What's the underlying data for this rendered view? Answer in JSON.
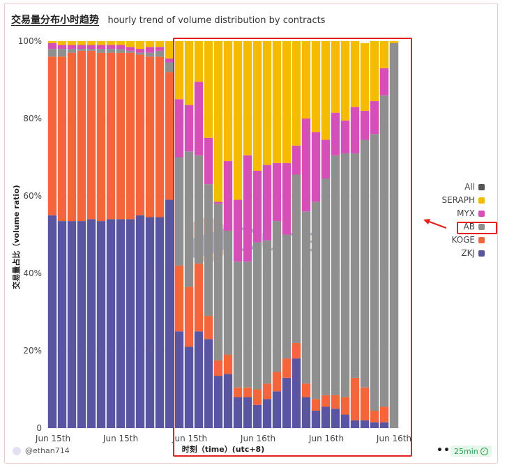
{
  "title": {
    "main": "交易量分布小时趋势",
    "subtitle": "hourly trend of volume distribution by contracts"
  },
  "footer": {
    "user": "@ethan714",
    "menu": "•••",
    "refresh_badge": "25min"
  },
  "watermark": "Dune",
  "colors": {
    "ZKJ": "#5a55a0",
    "KOGE": "#f4653b",
    "AB": "#8f8f8f",
    "MYX": "#d64fb8",
    "SERAPH": "#f5bb00",
    "All": "#555555"
  },
  "legend": [
    {
      "name": "All",
      "color": "#555555"
    },
    {
      "name": "SERAPH",
      "color": "#f5bb00"
    },
    {
      "name": "MYX",
      "color": "#d64fb8"
    },
    {
      "name": "AB",
      "color": "#8f8f8f",
      "highlighted": true
    },
    {
      "name": "KOGE",
      "color": "#f4653b"
    },
    {
      "name": "ZKJ",
      "color": "#5a55a0"
    }
  ],
  "chart_data": {
    "type": "bar",
    "stacked": true,
    "normalized": true,
    "xlabel": "时刻（time）(utc+8)",
    "ylabel": "交易量占比（volume ratio)",
    "ylim": [
      0,
      100
    ],
    "y_ticks": [
      "0",
      "20%",
      "40%",
      "60%",
      "80%",
      "100%"
    ],
    "x_tick_labels": [
      "Jun 15th",
      "Jun 15th",
      "Jun 15th",
      "Jun 16th",
      "Jun 16th",
      "Jun 16th"
    ],
    "stack_order": [
      "ZKJ",
      "KOGE",
      "AB",
      "MYX",
      "SERAPH"
    ],
    "series": [
      {
        "name": "ZKJ",
        "values": [
          55,
          53.5,
          53.5,
          53.5,
          54,
          53.5,
          54,
          54,
          54,
          55,
          54.5,
          54.5,
          59,
          25,
          21,
          25,
          23,
          13.5,
          14,
          8,
          8,
          6,
          7.5,
          9.5,
          13,
          18,
          8,
          4.5,
          5.5,
          5,
          3.5,
          2,
          2,
          1.5,
          1.5,
          0
        ]
      },
      {
        "name": "KOGE",
        "values": [
          41,
          42.5,
          43.5,
          44,
          43.5,
          43.5,
          43,
          43,
          43,
          41.5,
          41.5,
          41.5,
          33,
          17,
          15.5,
          17.5,
          6,
          4,
          5,
          2.5,
          2.5,
          4,
          4,
          5,
          5,
          4,
          3.5,
          3,
          3,
          3.5,
          4.5,
          11,
          8.5,
          3,
          4,
          0
        ]
      },
      {
        "name": "AB",
        "values": [
          2,
          2,
          1,
          0.5,
          0.5,
          1,
          1,
          1,
          0.5,
          0.5,
          1,
          1.5,
          2.5,
          28,
          35,
          28,
          34,
          40.5,
          32,
          32.5,
          32.5,
          38,
          37,
          39,
          32,
          43.5,
          44.5,
          51,
          56,
          62,
          63,
          58,
          64,
          71.5,
          80.5,
          99.5
        ]
      },
      {
        "name": "MYX",
        "values": [
          1.5,
          1,
          1,
          1,
          1,
          1,
          1,
          1,
          1,
          1,
          1.5,
          1,
          1,
          15,
          12,
          19,
          12,
          0.5,
          18,
          16,
          27.5,
          18.5,
          19.5,
          15,
          18.5,
          7.5,
          24,
          18,
          10,
          11,
          8.5,
          12,
          7.5,
          8.5,
          7,
          0
        ]
      },
      {
        "name": "SERAPH",
        "values": [
          0.5,
          1,
          1,
          1,
          1,
          1,
          1,
          1,
          1.5,
          2,
          1.5,
          1.5,
          4.5,
          15,
          16.5,
          10.5,
          25,
          41.5,
          31,
          41,
          29.5,
          33.5,
          32,
          31.5,
          31.5,
          27,
          20,
          23.5,
          25.5,
          18.5,
          20.5,
          17,
          17.5,
          15.5,
          7,
          0.5
        ]
      }
    ]
  }
}
